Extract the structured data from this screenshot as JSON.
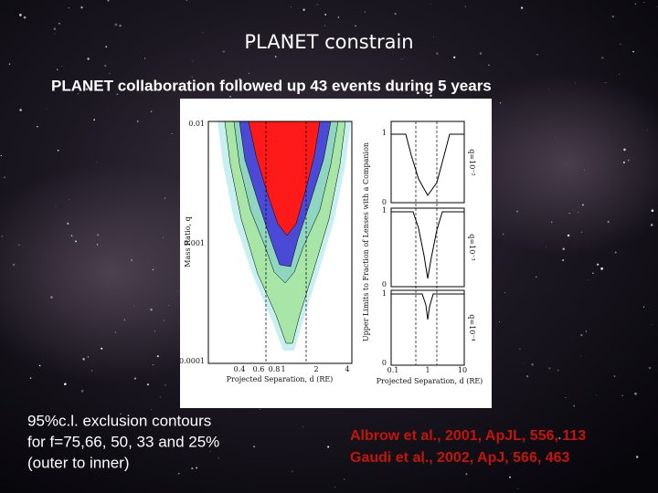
{
  "title": "PLANET constrain",
  "subtitle": "PLANET collaboration  followed up 43 events during 5 years",
  "figure": {
    "left": {
      "y_ticks": [
        "0.01",
        "0.001",
        "0.0001"
      ],
      "y_label": "Mass Ratio, q",
      "x_ticks": [
        "0.4",
        "0.6",
        "0.8",
        "1",
        "2",
        "4"
      ],
      "x_label": "Projected Separation, d (RE)"
    },
    "right": {
      "y_label": "Upper Limits to Fraction of Lenses with a Companion",
      "panel_labels": [
        "q=10⁻²",
        "q=10⁻³",
        "q=10⁻⁴"
      ],
      "y_ticks": [
        "1",
        "0"
      ],
      "x_ticks": [
        "0.1",
        "1",
        "10"
      ],
      "x_label": "Projected Separation, d (RE)"
    }
  },
  "caption": [
    "95%c.l. exclusion contours",
    "for f=75,66, 50, 33 and 25%",
    "(outer to inner)"
  ],
  "references": [
    "Albrow et al., 2001, ApJL, 556, 113",
    "Gaudi et al., 2002, ApJ, 566, 463"
  ]
}
